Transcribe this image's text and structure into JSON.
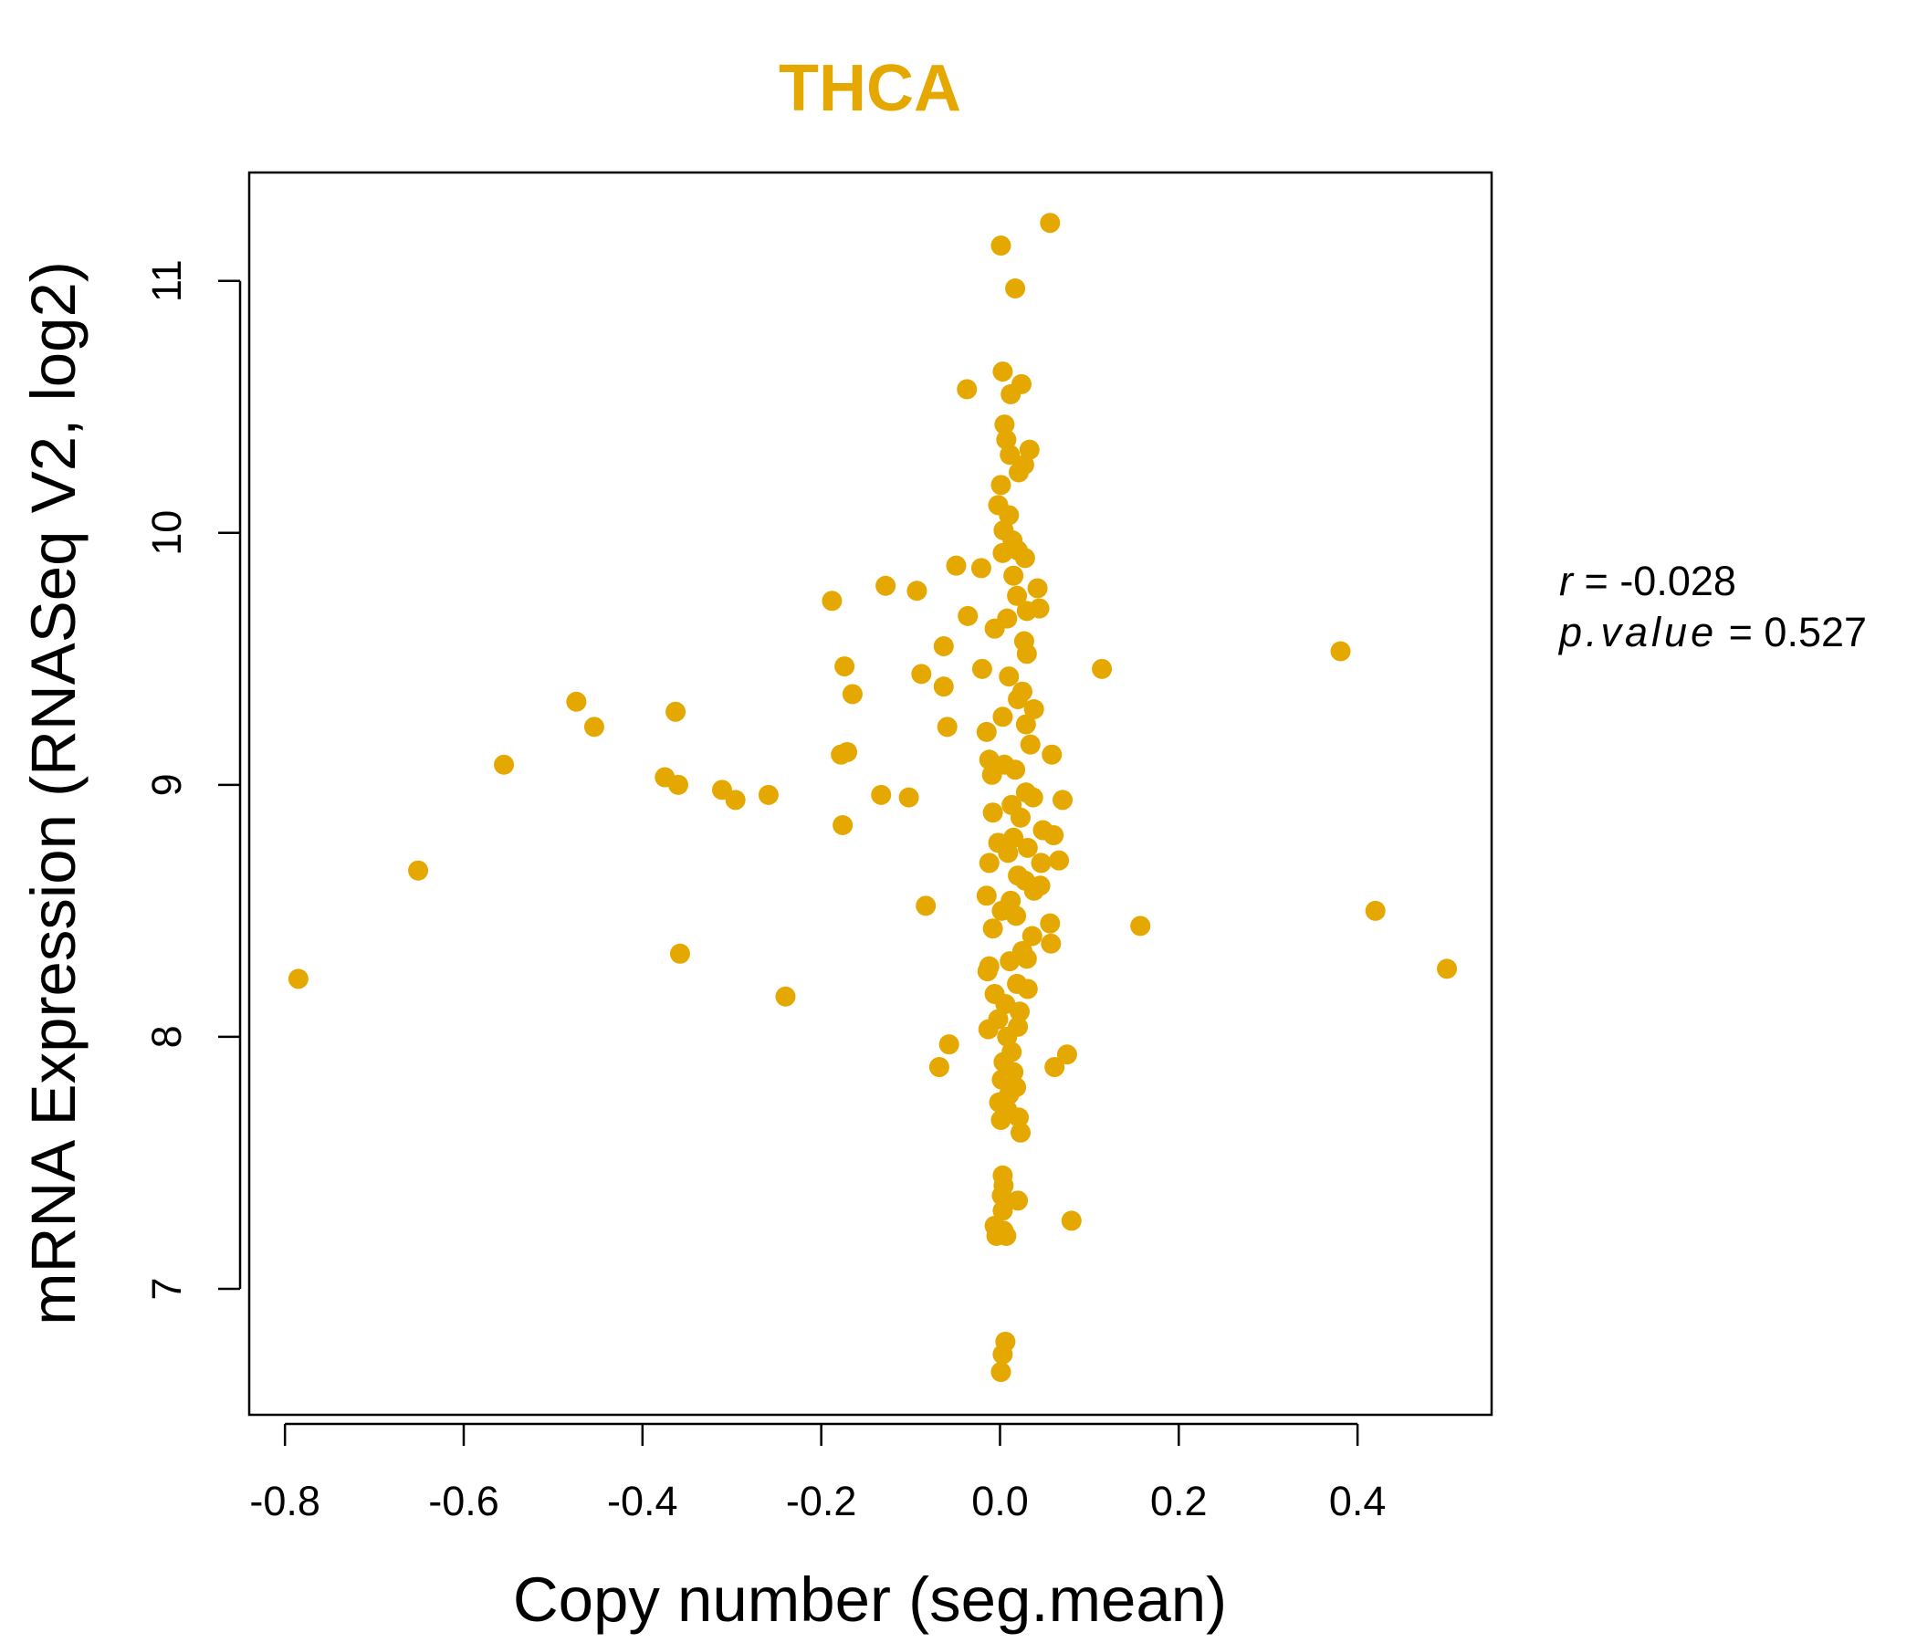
{
  "colors": {
    "points": "#E5A800",
    "title": "#E5A800",
    "axis": "#000000"
  },
  "stats": {
    "r_label": "r",
    "r_value": "-0.028",
    "p_label": "p.value",
    "p_value": "0.527"
  },
  "chart_data": {
    "type": "scatter",
    "title": "THCA",
    "xlabel": "Copy number (seg.mean)",
    "ylabel": "mRNA Expression (RNASeq V2, log2)",
    "xlim": [
      -0.84,
      0.55
    ],
    "ylim": [
      6.5,
      11.43
    ],
    "xticks": [
      -0.8,
      -0.6,
      -0.4,
      -0.2,
      0.0,
      0.2,
      0.4
    ],
    "xtick_labels": [
      "-0.8",
      "-0.6",
      "-0.4",
      "-0.2",
      "0.0",
      "0.2",
      "0.4"
    ],
    "yticks": [
      7,
      8,
      9,
      10,
      11
    ],
    "ytick_labels": [
      "7",
      "8",
      "9",
      "10",
      "11"
    ],
    "points": [
      [
        0.056,
        11.23
      ],
      [
        0.001,
        11.14
      ],
      [
        0.017,
        10.97
      ],
      [
        0.003,
        10.64
      ],
      [
        -0.037,
        10.57
      ],
      [
        0.024,
        10.59
      ],
      [
        0.012,
        10.55
      ],
      [
        0.005,
        10.43
      ],
      [
        0.007,
        10.37
      ],
      [
        0.033,
        10.33
      ],
      [
        0.011,
        10.31
      ],
      [
        0.021,
        10.24
      ],
      [
        0.027,
        10.27
      ],
      [
        0.001,
        10.19
      ],
      [
        -0.002,
        10.11
      ],
      [
        0.01,
        10.07
      ],
      [
        0.004,
        10.01
      ],
      [
        0.014,
        9.97
      ],
      [
        -0.049,
        9.87
      ],
      [
        -0.021,
        9.86
      ],
      [
        0.028,
        9.9
      ],
      [
        0.02,
        9.93
      ],
      [
        0.003,
        9.92
      ],
      [
        0.015,
        9.83
      ],
      [
        -0.128,
        9.79
      ],
      [
        -0.093,
        9.77
      ],
      [
        0.042,
        9.78
      ],
      [
        0.019,
        9.75
      ],
      [
        -0.188,
        9.73
      ],
      [
        -0.036,
        9.67
      ],
      [
        0.044,
        9.7
      ],
      [
        0.03,
        9.69
      ],
      [
        0.008,
        9.66
      ],
      [
        -0.006,
        9.62
      ],
      [
        -0.063,
        9.55
      ],
      [
        0.027,
        9.57
      ],
      [
        0.381,
        9.53
      ],
      [
        0.03,
        9.52
      ],
      [
        0.114,
        9.46
      ],
      [
        -0.174,
        9.47
      ],
      [
        -0.088,
        9.44
      ],
      [
        -0.02,
        9.46
      ],
      [
        0.01,
        9.43
      ],
      [
        -0.063,
        9.39
      ],
      [
        0.025,
        9.37
      ],
      [
        -0.165,
        9.36
      ],
      [
        0.02,
        9.34
      ],
      [
        -0.474,
        9.33
      ],
      [
        -0.363,
        9.29
      ],
      [
        0.038,
        9.3
      ],
      [
        0.003,
        9.27
      ],
      [
        -0.454,
        9.23
      ],
      [
        -0.059,
        9.23
      ],
      [
        -0.015,
        9.21
      ],
      [
        0.029,
        9.24
      ],
      [
        0.034,
        9.16
      ],
      [
        0.058,
        9.12
      ],
      [
        -0.178,
        9.12
      ],
      [
        -0.171,
        9.13
      ],
      [
        -0.012,
        9.1
      ],
      [
        0.005,
        9.08
      ],
      [
        -0.555,
        9.08
      ],
      [
        0.017,
        9.06
      ],
      [
        -0.009,
        9.04
      ],
      [
        -0.375,
        9.03
      ],
      [
        -0.36,
        9.0
      ],
      [
        -0.311,
        8.98
      ],
      [
        -0.296,
        8.94
      ],
      [
        -0.259,
        8.96
      ],
      [
        -0.133,
        8.96
      ],
      [
        -0.102,
        8.95
      ],
      [
        0.029,
        8.97
      ],
      [
        0.037,
        8.95
      ],
      [
        0.07,
        8.94
      ],
      [
        0.013,
        8.92
      ],
      [
        -0.008,
        8.89
      ],
      [
        0.023,
        8.87
      ],
      [
        -0.176,
        8.84
      ],
      [
        0.048,
        8.82
      ],
      [
        0.06,
        8.8
      ],
      [
        0.015,
        8.79
      ],
      [
        -0.002,
        8.77
      ],
      [
        0.031,
        8.75
      ],
      [
        0.009,
        8.73
      ],
      [
        0.066,
        8.7
      ],
      [
        0.046,
        8.69
      ],
      [
        -0.012,
        8.69
      ],
      [
        -0.651,
        8.66
      ],
      [
        0.02,
        8.64
      ],
      [
        0.028,
        8.62
      ],
      [
        0.045,
        8.6
      ],
      [
        0.038,
        8.58
      ],
      [
        -0.015,
        8.56
      ],
      [
        0.012,
        8.54
      ],
      [
        -0.083,
        8.52
      ],
      [
        0.002,
        8.5
      ],
      [
        0.018,
        8.48
      ],
      [
        0.42,
        8.5
      ],
      [
        0.056,
        8.45
      ],
      [
        0.157,
        8.44
      ],
      [
        -0.008,
        8.43
      ],
      [
        0.036,
        8.4
      ],
      [
        0.057,
        8.37
      ],
      [
        0.025,
        8.34
      ],
      [
        -0.358,
        8.33
      ],
      [
        0.03,
        8.31
      ],
      [
        0.011,
        8.3
      ],
      [
        -0.012,
        8.28
      ],
      [
        0.5,
        8.27
      ],
      [
        -0.014,
        8.26
      ],
      [
        -0.785,
        8.23
      ],
      [
        0.019,
        8.21
      ],
      [
        0.031,
        8.19
      ],
      [
        -0.006,
        8.17
      ],
      [
        -0.24,
        8.16
      ],
      [
        0.006,
        8.13
      ],
      [
        0.022,
        8.1
      ],
      [
        -0.002,
        8.07
      ],
      [
        0.02,
        8.04
      ],
      [
        -0.013,
        8.03
      ],
      [
        0.008,
        8.0
      ],
      [
        -0.057,
        7.97
      ],
      [
        0.013,
        7.94
      ],
      [
        0.075,
        7.93
      ],
      [
        0.004,
        7.9
      ],
      [
        -0.068,
        7.88
      ],
      [
        0.061,
        7.88
      ],
      [
        0.015,
        7.86
      ],
      [
        0.002,
        7.83
      ],
      [
        0.018,
        7.8
      ],
      [
        0.01,
        7.77
      ],
      [
        -0.001,
        7.74
      ],
      [
        0.008,
        7.71
      ],
      [
        0.021,
        7.68
      ],
      [
        0.001,
        7.67
      ],
      [
        0.023,
        7.62
      ],
      [
        0.003,
        7.45
      ],
      [
        0.004,
        7.41
      ],
      [
        0.002,
        7.37
      ],
      [
        0.02,
        7.35
      ],
      [
        0.003,
        7.31
      ],
      [
        0.08,
        7.27
      ],
      [
        -0.006,
        7.25
      ],
      [
        0.004,
        7.23
      ],
      [
        0.007,
        7.21
      ],
      [
        -0.004,
        7.21
      ],
      [
        0.006,
        6.79
      ],
      [
        0.003,
        6.74
      ],
      [
        0.001,
        6.67
      ]
    ]
  }
}
